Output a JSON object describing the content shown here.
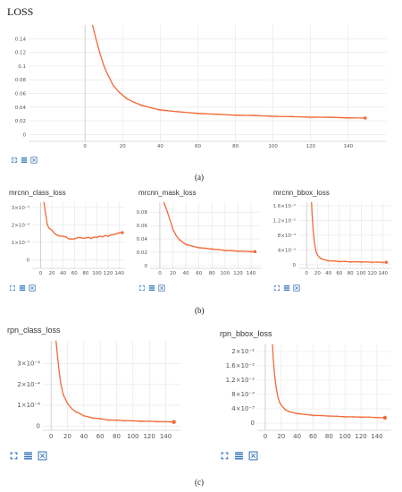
{
  "panels": [
    {
      "label": "(a)"
    },
    {
      "label": "(b)"
    },
    {
      "label": "(c)"
    }
  ],
  "toolbar": {
    "icons": [
      "fullscreen-icon",
      "list-icon",
      "fit-domain-icon"
    ]
  },
  "colors": {
    "series": "#f26b3a",
    "smoothed": "#f7c4ad",
    "grid": "#e5e5e5"
  },
  "chart_data": [
    {
      "id": "loss",
      "type": "line",
      "title": "LOSS",
      "xlim": [
        -30,
        160
      ],
      "ylim": [
        -0.01,
        0.16
      ],
      "xticks": [
        0,
        20,
        40,
        60,
        80,
        100,
        120,
        140
      ],
      "yticks": [
        0,
        0.02,
        0.04,
        0.06,
        0.08,
        0.1,
        0.12,
        0.14
      ],
      "ytick_labels": [
        "0",
        "0.02",
        "0.04",
        "0.06",
        "0.08",
        "0.1",
        "0.12",
        "0.14"
      ],
      "series": [
        {
          "x": [
            4,
            6,
            8,
            10,
            12,
            15,
            18,
            22,
            26,
            30,
            35,
            40,
            50,
            60,
            70,
            80,
            90,
            100,
            110,
            120,
            130,
            140,
            149
          ],
          "y": [
            0.16,
            0.138,
            0.118,
            0.101,
            0.088,
            0.072,
            0.062,
            0.053,
            0.047,
            0.043,
            0.039,
            0.036,
            0.033,
            0.031,
            0.0295,
            0.0285,
            0.0277,
            0.0268,
            0.026,
            0.0255,
            0.025,
            0.0245,
            0.024
          ]
        }
      ]
    },
    {
      "id": "mrcnn_class_loss",
      "type": "line",
      "title": "mrcnn_class_loss",
      "xlim": [
        -15,
        150
      ],
      "ylim": [
        -5e-05,
        0.00033
      ],
      "xticks": [
        0,
        20,
        40,
        60,
        80,
        100,
        120,
        140
      ],
      "yticks": [
        0,
        0.0001,
        0.0002,
        0.0003
      ],
      "ytick_labels": [
        "0",
        "1×10⁻⁴",
        "2×10⁻⁴",
        "3×10⁻⁴"
      ],
      "series": [
        {
          "x": [
            6,
            8,
            10,
            12,
            15,
            20,
            25,
            30,
            35,
            40,
            45,
            50,
            55,
            60,
            65,
            70,
            75,
            80,
            85,
            90,
            95,
            100,
            105,
            110,
            115,
            120,
            125,
            130,
            135,
            140,
            145
          ],
          "y": [
            0.00033,
            0.00028,
            0.00024,
            0.0002,
            0.00018,
            0.00017,
            0.00015,
            0.00014,
            0.000135,
            0.000135,
            0.00013,
            0.00012,
            0.000118,
            0.00012,
            0.000125,
            0.000128,
            0.000122,
            0.000125,
            0.000128,
            0.000122,
            0.00013,
            0.000128,
            0.000135,
            0.000132,
            0.000138,
            0.000135,
            0.000142,
            0.000145,
            0.000148,
            0.000155,
            0.000155
          ]
        }
      ]
    },
    {
      "id": "mrcnn_mask_loss",
      "type": "line",
      "title": "mrcnn_mask_loss",
      "xlim": [
        -15,
        155
      ],
      "ylim": [
        -0.004,
        0.095
      ],
      "xticks": [
        0,
        20,
        40,
        60,
        80,
        100,
        120,
        140
      ],
      "yticks": [
        0,
        0.02,
        0.04,
        0.06,
        0.08
      ],
      "ytick_labels": [
        "0",
        "0.02",
        "0.04",
        "0.06",
        "0.08"
      ],
      "series": [
        {
          "x": [
            6,
            10,
            15,
            20,
            25,
            30,
            35,
            40,
            50,
            60,
            70,
            80,
            90,
            100,
            110,
            120,
            130,
            140,
            146
          ],
          "y": [
            0.095,
            0.085,
            0.07,
            0.055,
            0.045,
            0.039,
            0.035,
            0.032,
            0.029,
            0.027,
            0.026,
            0.025,
            0.024,
            0.023,
            0.0225,
            0.022,
            0.0215,
            0.021,
            0.021
          ]
        }
      ]
    },
    {
      "id": "mrcnn_bbox_loss",
      "type": "line",
      "title": "mrcnn_bbox_loss",
      "xlim": [
        -15,
        155
      ],
      "ylim": [
        -0.001,
        0.017
      ],
      "xticks": [
        0,
        20,
        40,
        60,
        80,
        100,
        120,
        140
      ],
      "yticks": [
        0,
        0.004,
        0.008,
        0.012,
        0.016
      ],
      "ytick_labels": [
        "0",
        "4×10⁻³",
        "8×10⁻³",
        "1.2×10⁻²",
        "1.6×10⁻²"
      ],
      "series": [
        {
          "x": [
            9,
            10,
            12,
            14,
            16,
            18,
            20,
            25,
            30,
            40,
            50,
            60,
            70,
            80,
            90,
            100,
            110,
            120,
            130,
            140,
            146
          ],
          "y": [
            0.017,
            0.014,
            0.0095,
            0.0065,
            0.0045,
            0.0033,
            0.0026,
            0.0018,
            0.0014,
            0.0011,
            0.001,
            0.0009,
            0.00085,
            0.0008,
            0.00078,
            0.00075,
            0.00072,
            0.0007,
            0.00068,
            0.00066,
            0.00065
          ]
        }
      ]
    },
    {
      "id": "rpn_class_loss",
      "type": "line",
      "title": "rpn_class_loss",
      "xlim": [
        -10,
        158
      ],
      "ylim": [
        -2e-05,
        0.00041
      ],
      "xticks": [
        0,
        20,
        40,
        60,
        80,
        100,
        120,
        140
      ],
      "yticks": [
        0,
        0.0001,
        0.0002,
        0.0003
      ],
      "ytick_labels": [
        "0",
        "1×10⁻⁴",
        "2×10⁻⁴",
        "3×10⁻⁴"
      ],
      "series": [
        {
          "x": [
            6,
            8,
            10,
            12,
            15,
            20,
            25,
            30,
            35,
            40,
            45,
            50,
            60,
            70,
            80,
            90,
            100,
            110,
            120,
            130,
            140,
            150
          ],
          "y": [
            0.00041,
            0.00033,
            0.00026,
            0.0002,
            0.00015,
            0.00011,
            8.5e-05,
            7e-05,
            6e-05,
            5e-05,
            4.5e-05,
            4e-05,
            3.5e-05,
            3e-05,
            2.8e-05,
            2.7e-05,
            2.5e-05,
            2.4e-05,
            2.3e-05,
            2.2e-05,
            2.1e-05,
            2e-05
          ]
        }
      ]
    },
    {
      "id": "rpn_bbox_loss",
      "type": "line",
      "title": "rpn_bbox_loss",
      "xlim": [
        -10,
        158
      ],
      "ylim": [
        -0.002,
        0.022
      ],
      "xticks": [
        0,
        20,
        40,
        60,
        80,
        100,
        120,
        140
      ],
      "yticks": [
        0,
        0.004,
        0.008,
        0.012,
        0.016,
        0.02
      ],
      "ytick_labels": [
        "0",
        "4×10⁻³",
        "8×10⁻³",
        "1.2×10⁻²",
        "1.6×10⁻²",
        "2×10⁻²"
      ],
      "series": [
        {
          "x": [
            9,
            10,
            12,
            14,
            16,
            18,
            20,
            25,
            30,
            40,
            50,
            60,
            70,
            80,
            90,
            100,
            110,
            120,
            130,
            140,
            150
          ],
          "y": [
            0.022,
            0.018,
            0.013,
            0.0095,
            0.0072,
            0.0058,
            0.005,
            0.0038,
            0.0032,
            0.0027,
            0.0024,
            0.0022,
            0.0021,
            0.002,
            0.0019,
            0.0018,
            0.00175,
            0.0017,
            0.00165,
            0.0016,
            0.0015
          ]
        }
      ]
    }
  ]
}
